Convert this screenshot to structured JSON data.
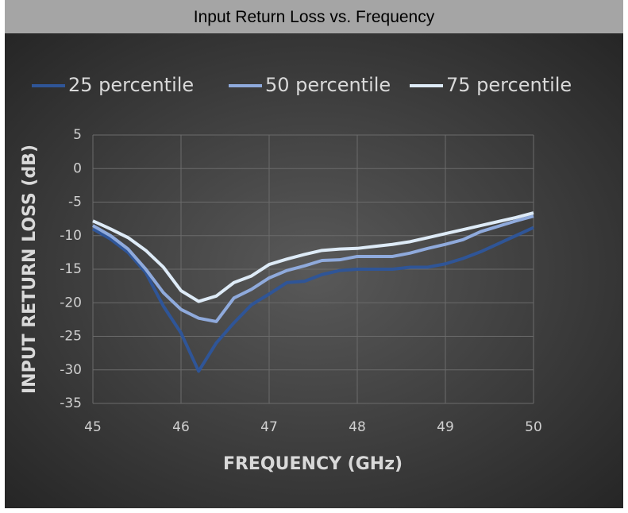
{
  "chart_data": {
    "type": "line",
    "title": "Input Return Loss vs. Frequency",
    "x_label": "FREQUENCY (GHz)",
    "y_label": "INPUT RETURN LOSS (dB)",
    "x": [
      45,
      45.2,
      45.4,
      45.6,
      45.8,
      46,
      46.2,
      46.4,
      46.6,
      46.8,
      47,
      47.2,
      47.4,
      47.6,
      47.8,
      48,
      48.2,
      48.4,
      48.6,
      48.8,
      49,
      49.2,
      49.4,
      49.6,
      49.8,
      50
    ],
    "series": [
      {
        "name": "25 percentile",
        "color": "#2f5597",
        "values": [
          -9,
          -10.5,
          -12.5,
          -15.5,
          -20.5,
          -24.5,
          -30.2,
          -26,
          -23,
          -20.3,
          -18.7,
          -17,
          -16.8,
          -15.8,
          -15.2,
          -15,
          -15,
          -15,
          -14.7,
          -14.7,
          -14.2,
          -13.4,
          -12.4,
          -11.2,
          -10,
          -8.8
        ]
      },
      {
        "name": "50 percentile",
        "color": "#8faadc",
        "values": [
          -8.5,
          -10,
          -12,
          -15,
          -18.5,
          -21,
          -22.3,
          -22.8,
          -19.3,
          -18,
          -16.3,
          -15.2,
          -14.5,
          -13.7,
          -13.6,
          -13.1,
          -13.1,
          -13.1,
          -12.6,
          -11.9,
          -11.3,
          -10.6,
          -9.4,
          -8.6,
          -7.8,
          -7.1
        ]
      },
      {
        "name": "75 percentile",
        "color": "#deebf7",
        "values": [
          -7.8,
          -9,
          -10.3,
          -12.2,
          -14.7,
          -18.2,
          -19.8,
          -19,
          -17,
          -16,
          -14.3,
          -13.5,
          -12.8,
          -12.2,
          -12,
          -11.9,
          -11.6,
          -11.3,
          -10.9,
          -10.3,
          -9.7,
          -9.1,
          -8.5,
          -7.9,
          -7.3,
          -6.6
        ]
      }
    ],
    "xlim": [
      45,
      50
    ],
    "xticks": [
      45,
      46,
      47,
      48,
      49,
      50
    ],
    "ylim": [
      -35,
      5
    ],
    "yticks": [
      5,
      0,
      -5,
      -10,
      -15,
      -20,
      -25,
      -30,
      -35
    ],
    "grid": true,
    "legend": "top"
  }
}
